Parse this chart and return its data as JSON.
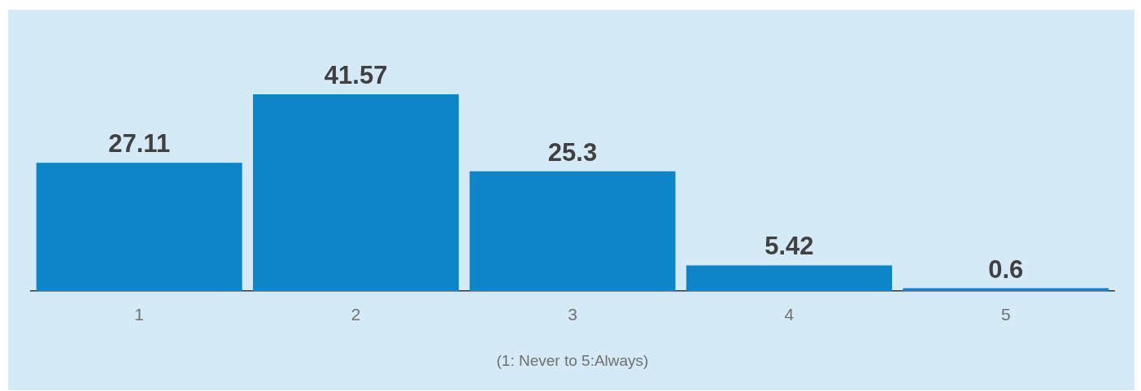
{
  "chart_data": {
    "type": "bar",
    "xlabel": "(1: Never to 5:Always)",
    "categories": [
      "1",
      "2",
      "3",
      "4",
      "5"
    ],
    "values": [
      27.11,
      41.57,
      25.3,
      5.42,
      0.6
    ],
    "color": "#0d85c8",
    "data_labels": true,
    "grid": false,
    "legend": false
  }
}
